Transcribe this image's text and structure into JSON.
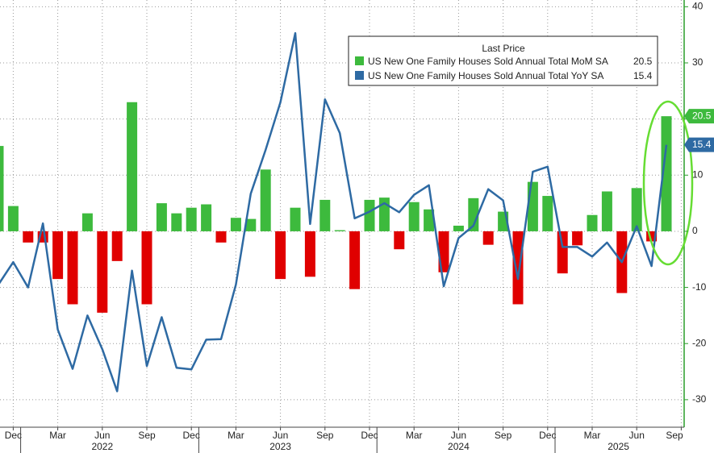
{
  "chart_data": {
    "type": "bar_line",
    "legend_title": "Last Price",
    "categories": [
      null,
      "Dec",
      null,
      null,
      "Mar",
      null,
      null,
      "Jun",
      null,
      null,
      "Sep",
      null,
      null,
      "Dec",
      null,
      null,
      "Mar",
      null,
      null,
      "Jun",
      null,
      null,
      "Sep",
      null,
      null,
      "Dec",
      null,
      null,
      "Mar",
      null,
      null,
      "Jun",
      null,
      null,
      "Sep",
      null,
      null,
      "Dec",
      null,
      null,
      "Mar",
      null,
      null,
      "Jun",
      null,
      null,
      "Sep"
    ],
    "years": [
      "2022",
      "2023",
      "2024",
      "2025"
    ],
    "series": [
      {
        "name": "US New One Family Houses Sold Annual Total MoM SA",
        "type": "bar",
        "color": "#3dba3d",
        "negative_color": "#e00000",
        "values": [
          15.2,
          4.5,
          -2,
          -2,
          -8.5,
          -13,
          3.2,
          -14.5,
          -5.3,
          23,
          -13,
          5,
          3.2,
          4.2,
          4.8,
          -2,
          2.4,
          2.2,
          11,
          -8.5,
          4.2,
          -8.1,
          5.6,
          0.2,
          -10.3,
          5.6,
          6,
          -3.2,
          5.2,
          3.9,
          -7.3,
          1,
          5.9,
          -2.4,
          3.5,
          -13,
          8.8,
          6.3,
          -7.5,
          -2.5,
          2.9,
          7.1,
          -11,
          7.7,
          -1.8,
          20.5,
          null
        ]
      },
      {
        "name": "US New One Family Houses Sold Annual Total YoY SA",
        "type": "line",
        "color": "#2e6aa3",
        "values": [
          -9.5,
          -5.5,
          -10,
          1.4,
          -17.5,
          -24.5,
          -15,
          -21,
          -28.5,
          -7,
          -24,
          -15.3,
          -24.3,
          -24.6,
          -19.3,
          -19.2,
          -9.5,
          6.7,
          14.5,
          23,
          35.3,
          1.3,
          23.5,
          17.5,
          2.3,
          3.5,
          5,
          3.4,
          6.5,
          8.2,
          -9.8,
          -1.2,
          1,
          7.5,
          5.5,
          -8.5,
          10.6,
          11.5,
          -2.8,
          -2.8,
          -4.5,
          -2,
          -5.5,
          0.9,
          -6.2,
          15.4,
          null
        ]
      }
    ],
    "ylim": [
      -34.9,
      41.2
    ],
    "yticks": [
      -30,
      -20,
      -10,
      0,
      10,
      20,
      30,
      40
    ],
    "grid": true,
    "legend": "upper right"
  }
}
